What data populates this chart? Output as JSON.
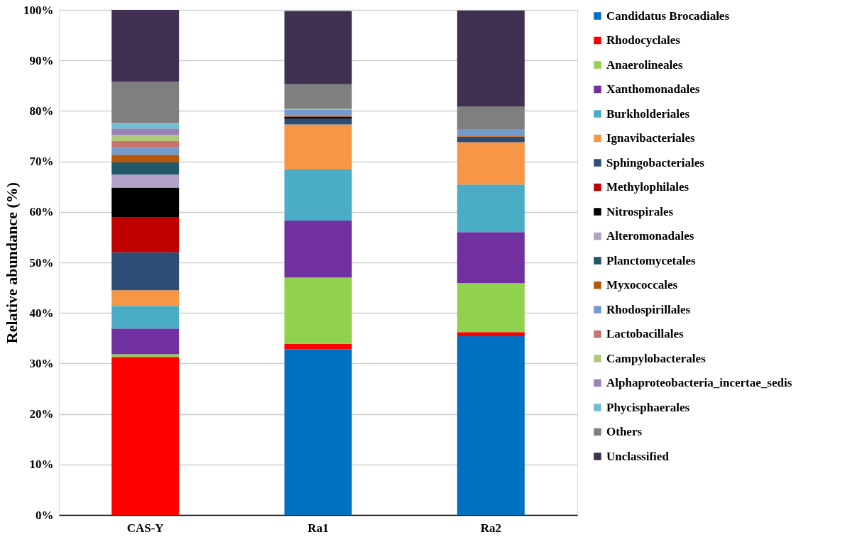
{
  "chart_data": {
    "type": "bar",
    "stacked": true,
    "ylabel": "Relative abundance (%)",
    "categories": [
      "CAS-Y",
      "Ra1",
      "Ra2"
    ],
    "ylim": [
      0,
      100
    ],
    "yticks": [
      {
        "value": 0,
        "label": "0%"
      },
      {
        "value": 10,
        "label": "10%"
      },
      {
        "value": 20,
        "label": "20%"
      },
      {
        "value": 30,
        "label": "30%"
      },
      {
        "value": 40,
        "label": "40%"
      },
      {
        "value": 50,
        "label": "50%"
      },
      {
        "value": 60,
        "label": "60%"
      },
      {
        "value": 70,
        "label": "70%"
      },
      {
        "value": 80,
        "label": "80%"
      },
      {
        "value": 90,
        "label": "90%"
      },
      {
        "value": 100,
        "label": "100%"
      }
    ],
    "grid": "y",
    "legend": "right",
    "series": [
      {
        "name": "Candidatus Brocadiales",
        "color": "#0070c0",
        "values": [
          null,
          32.8,
          35.4
        ]
      },
      {
        "name": "Rhodocyclales",
        "color": "#ff0000",
        "values": [
          31.3,
          1.1,
          0.8
        ]
      },
      {
        "name": "Anaerolineales",
        "color": "#92d050",
        "values": [
          0.5,
          13.1,
          9.7
        ]
      },
      {
        "name": "Xanthomonadales",
        "color": "#7030a0",
        "values": [
          5.1,
          11.3,
          10.1
        ]
      },
      {
        "name": "Burkholderiales",
        "color": "#4bacc6",
        "values": [
          4.5,
          10.1,
          9.4
        ]
      },
      {
        "name": "Ignavibacteriales",
        "color": "#f79646",
        "values": [
          3.1,
          8.9,
          8.4
        ]
      },
      {
        "name": "Sphingobacteriales",
        "color": "#2c4d75",
        "values": [
          7.5,
          1.2,
          1.1
        ]
      },
      {
        "name": "Methylophilales",
        "color": "#c00000",
        "values": [
          7.0,
          null,
          null
        ]
      },
      {
        "name": "Nitrospirales",
        "color": "#000000",
        "values": [
          5.8,
          0.3,
          null
        ]
      },
      {
        "name": "Alteromonadales",
        "color": "#b3a2c7",
        "values": [
          2.6,
          null,
          null
        ]
      },
      {
        "name": "Planctomycetales",
        "color": "#215968",
        "values": [
          2.4,
          null,
          null
        ]
      },
      {
        "name": "Myxococcales",
        "color": "#b65708",
        "values": [
          1.5,
          0.2,
          0.2
        ]
      },
      {
        "name": "Rhodospirillales",
        "color": "#729aca",
        "values": [
          1.5,
          1.2,
          1.3
        ]
      },
      {
        "name": "Lactobacillales",
        "color": "#c9736f",
        "values": [
          1.2,
          null,
          null
        ]
      },
      {
        "name": "Campylobacterales",
        "color": "#afc97a",
        "values": [
          1.2,
          0.2,
          null
        ]
      },
      {
        "name": "Alphaproteobacteria_incertae_sedis",
        "color": "#9983b5",
        "values": [
          1.3,
          null,
          null
        ]
      },
      {
        "name": "Phycisphaerales",
        "color": "#6fbfd3",
        "values": [
          1.1,
          null,
          null
        ]
      },
      {
        "name": "Others",
        "color": "#7f7f7f",
        "values": [
          8.2,
          4.9,
          4.5
        ]
      },
      {
        "name": "Unclassified",
        "color": "#403152",
        "values": [
          14.2,
          14.5,
          19.0
        ]
      }
    ]
  }
}
